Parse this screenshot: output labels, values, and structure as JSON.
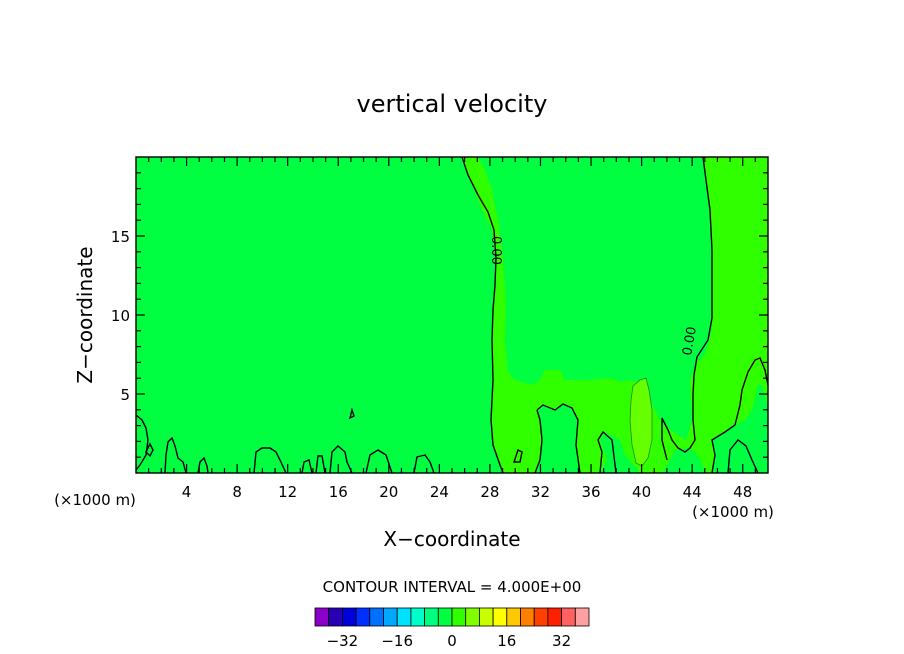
{
  "chart_data": {
    "type": "contour",
    "title": "vertical velocity",
    "xlabel": "X−coordinate",
    "ylabel": "Z−coordinate",
    "x_unit_left": "(×1000 m)",
    "x_unit_right": "(×1000 m)",
    "xlim": [
      0,
      50
    ],
    "ylim": [
      0,
      20
    ],
    "x_ticks": [
      4,
      8,
      12,
      16,
      20,
      24,
      28,
      32,
      36,
      40,
      44,
      48
    ],
    "y_ticks": [
      5,
      10,
      15
    ],
    "contour_labels": [
      "0.00",
      "0.00"
    ],
    "contour_interval_label": "CONTOUR INTERVAL = 4.000E+00",
    "contour_interval": 4.0,
    "colorbar": {
      "ticks": [
        "−32",
        "−16",
        "0",
        "16",
        "32"
      ],
      "colors": [
        "#8a00c8",
        "#2800b4",
        "#0000dc",
        "#0030ff",
        "#0070ff",
        "#00a8ff",
        "#00e0ff",
        "#00ffc8",
        "#00ff80",
        "#00ff40",
        "#30ff00",
        "#80ff00",
        "#c8ff00",
        "#ffff00",
        "#ffc800",
        "#ff8000",
        "#ff4000",
        "#ff2000",
        "#ff6060",
        "#ffa0a0"
      ]
    },
    "fill_colors": {
      "low": "#00ff40",
      "mid": "#30ff00",
      "high": "#66ff00"
    }
  }
}
